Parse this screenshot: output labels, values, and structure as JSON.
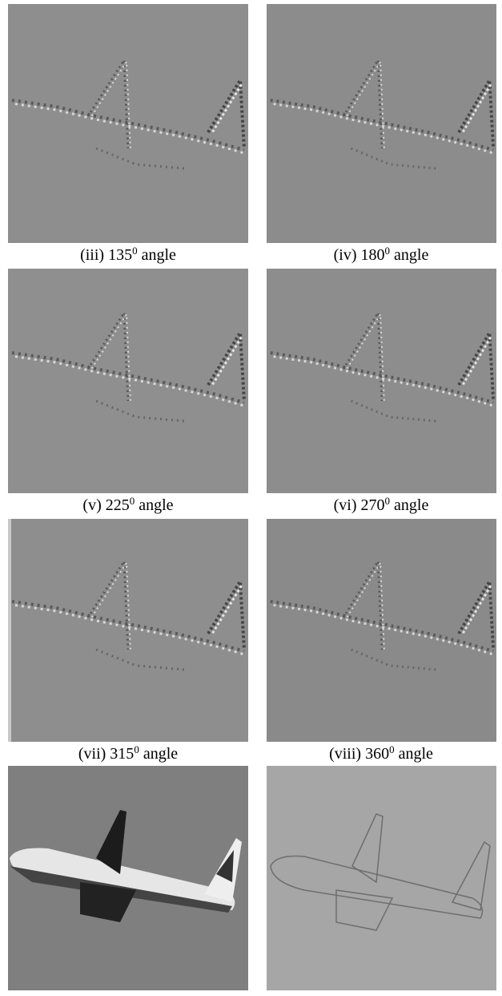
{
  "panels": [
    {
      "caption": {
        "label": "(iii) 135",
        "sup": "0",
        "rest": "angle"
      }
    },
    {
      "caption": {
        "label": "(iv) 180",
        "sup": "0",
        "rest": "angle"
      }
    },
    {
      "caption": {
        "label": "(v) 225",
        "sup": "0",
        "rest": "angle"
      }
    },
    {
      "caption": {
        "label": "(vi) 270",
        "sup": "0",
        "rest": "angle"
      }
    },
    {
      "caption": {
        "label": "(vii) 315",
        "sup": "0",
        "rest": "angle"
      }
    },
    {
      "caption": {
        "label": "(viii) 360",
        "sup": "0",
        "rest": "angle"
      }
    }
  ]
}
